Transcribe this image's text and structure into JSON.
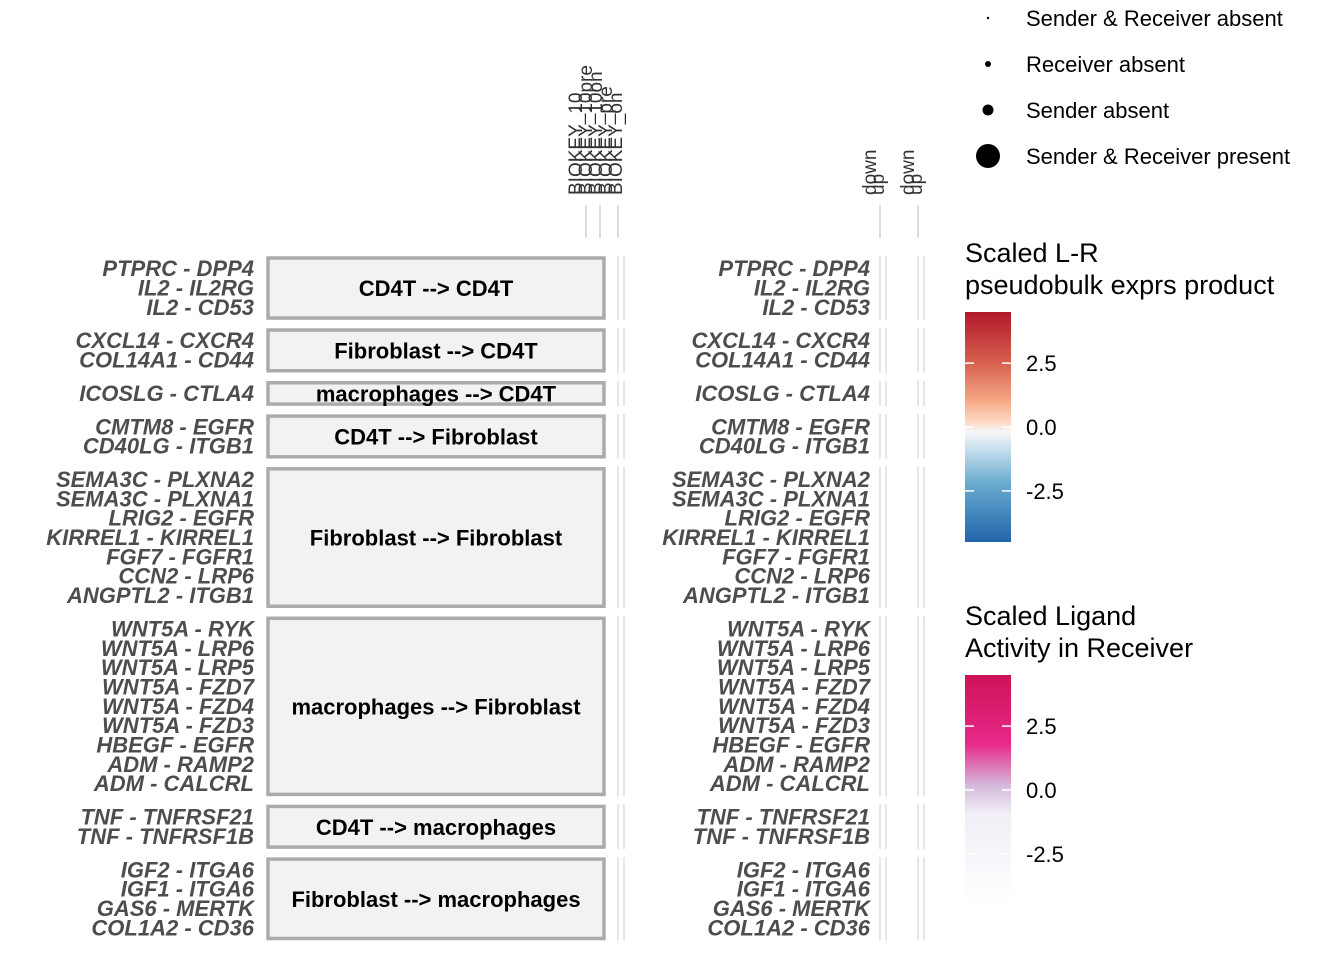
{
  "chart_data": {
    "type": "dotplot",
    "title": "",
    "groups": [
      {
        "label": "CD4T --> CD4T",
        "pairs": [
          "PTPRC - DPP4",
          "IL2 - IL2RG",
          "IL2 - CD53"
        ]
      },
      {
        "label": "Fibroblast --> CD4T",
        "pairs": [
          "CXCL14 - CXCR4",
          "COL14A1 - CD44"
        ]
      },
      {
        "label": "macrophages --> CD4T",
        "pairs": [
          "ICOSLG - CTLA4"
        ]
      },
      {
        "label": "CD4T --> Fibroblast",
        "pairs": [
          "CMTM8 - EGFR",
          "CD40LG - ITGB1"
        ]
      },
      {
        "label": "Fibroblast --> Fibroblast",
        "pairs": [
          "SEMA3C - PLXNA2",
          "SEMA3C - PLXNA1",
          "LRIG2 - EGFR",
          "KIRREL1 - KIRREL1",
          "FGF7 - FGFR1",
          "CCN2 - LRP6",
          "ANGPTL2 - ITGB1"
        ]
      },
      {
        "label": "macrophages --> Fibroblast",
        "pairs": [
          "WNT5A - RYK",
          "WNT5A - LRP6",
          "WNT5A - LRP5",
          "WNT5A - FZD7",
          "WNT5A - FZD4",
          "WNT5A - FZD3",
          "HBEGF - EGFR",
          "ADM - RAMP2",
          "ADM - CALCRL"
        ]
      },
      {
        "label": "CD4T --> macrophages",
        "pairs": [
          "TNF - TNFRSF21",
          "TNF - TNFRSF1B"
        ]
      },
      {
        "label": "Fibroblast --> macrophages",
        "pairs": [
          "IGF2 - ITGA6",
          "IGF1 - ITGA6",
          "GAS6 - MERTK",
          "COL1A2 - CD36"
        ]
      }
    ],
    "expression_columns": [
      "BIOKEY_10",
      "BIOKEY_10pre",
      "BIOKEY_10on",
      "BIOKEY_pre",
      "BIOKEY_on"
    ],
    "activity_columns": [
      "down",
      "up",
      "down",
      "up"
    ],
    "size_legend": {
      "items": [
        "Sender & Receiver absent",
        "Receiver absent",
        "Sender absent",
        "Sender & Receiver present"
      ]
    },
    "expr_legend": {
      "title_line1": "Scaled L-R",
      "title_line2": "pseudobulk exprs product",
      "ticks": [
        "2.5",
        "0.0",
        "-2.5"
      ],
      "tick_values": [
        2.5,
        0.0,
        -2.5
      ],
      "range": [
        -4.5,
        4.5
      ],
      "colors": [
        "#b2182b",
        "#ef8a62",
        "#fddbc7",
        "#f7f7f7",
        "#d1e5f0",
        "#67a9cf",
        "#2166ac"
      ]
    },
    "activity_legend": {
      "title_line1": "Scaled Ligand",
      "title_line2": "Activity in Receiver",
      "ticks": [
        "2.5",
        "0.0",
        "-2.5"
      ],
      "tick_values": [
        2.5,
        0.0,
        -2.5
      ],
      "range": [
        -4.5,
        4.5
      ],
      "colors": [
        "#d01c6a",
        "#e7298a",
        "#d4b9da",
        "#f1eef6",
        "#ffffff"
      ]
    }
  }
}
